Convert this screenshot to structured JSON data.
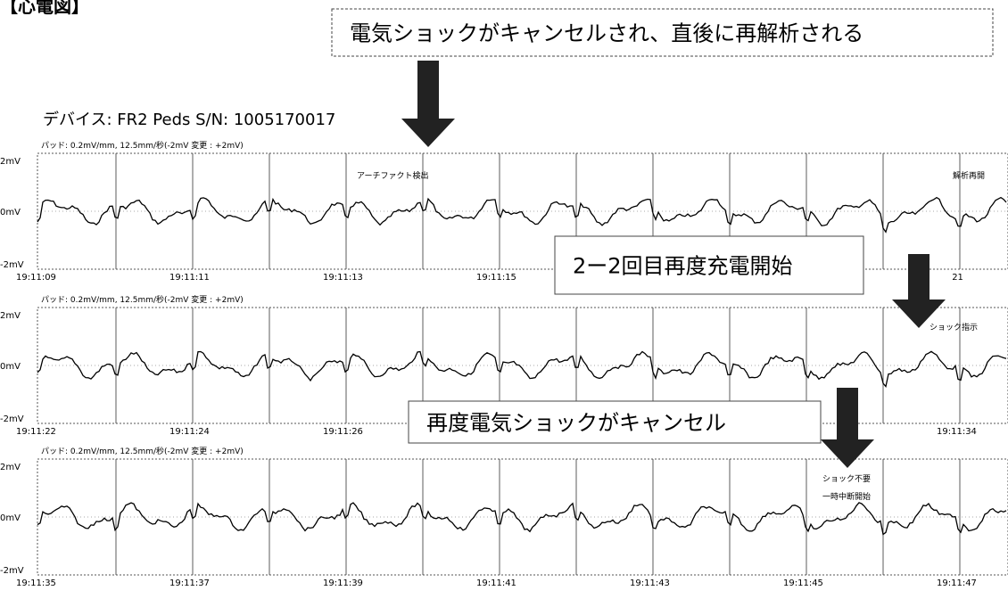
{
  "header": {
    "title": "【心電図】",
    "device": "デバイス: FR2 Peds S/N: 1005170017"
  },
  "callouts": [
    "電気ショックがキャンセルされ、直後に再解析される",
    "2ー2回目再度充電開始",
    "再度電気ショックがキャンセル"
  ],
  "strips": [
    {
      "settings": "パッド: 0.2mV/mm, 12.5mm/秒(-2mV 変更 : +2mV)",
      "y_labels": [
        "2mV",
        "0mV",
        "-2mV"
      ],
      "times": [
        "19:11:09",
        "19:11:11",
        "19:11:13",
        "19:11:15",
        "21"
      ],
      "annotations": [
        "アーチファクト検出",
        "解析再開"
      ]
    },
    {
      "settings": "パッド: 0.2mV/mm, 12.5mm/秒(-2mV 変更 : +2mV)",
      "y_labels": [
        "2mV",
        "0mV",
        "-2mV"
      ],
      "times": [
        "19:11:22",
        "19:11:24",
        "19:11:26",
        "19:11:34"
      ],
      "annotations": [
        "ショック指示"
      ]
    },
    {
      "settings": "パッド: 0.2mV/mm, 12.5mm/秒(-2mV 変更 : +2mV)",
      "y_labels": [
        "2mV",
        "0mV",
        "-2mV"
      ],
      "times": [
        "19:11:35",
        "19:11:37",
        "19:11:39",
        "19:11:41",
        "19:11:43",
        "19:11:45",
        "19:11:47"
      ],
      "annotations": [
        "ショック不要",
        "一時中断開始"
      ]
    }
  ]
}
